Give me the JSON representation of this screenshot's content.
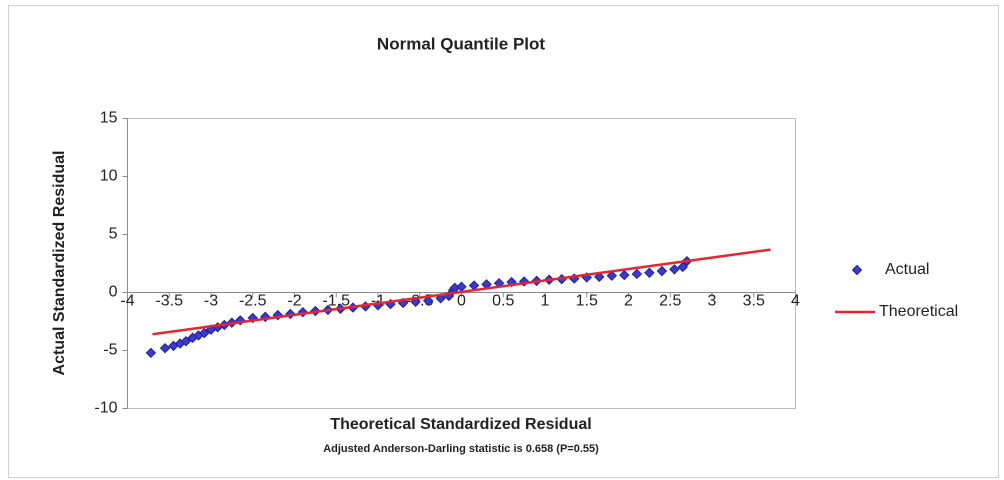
{
  "chart_data": {
    "type": "scatter",
    "title": "Normal Quantile Plot",
    "x_label": "Theoretical Standardized Residual",
    "y_label": "Actual Standardized Residual",
    "annotation": "Adjusted Anderson-Darling statistic is 0.658 (P=0.55)",
    "xlim": [
      -4,
      4
    ],
    "xticks": [
      -4,
      -3.5,
      -3,
      -2.5,
      -2,
      -1.5,
      -1,
      -0.5,
      0,
      0.5,
      1,
      1.5,
      2,
      2.5,
      3,
      3.5,
      4
    ],
    "ylim": [
      -10,
      15
    ],
    "yticks": [
      -10,
      -5,
      0,
      5,
      10,
      15
    ],
    "grid": false,
    "legend": "right",
    "series": [
      {
        "name": "Actual",
        "color": "#3a3ad0",
        "mode": "markers",
        "x": [
          -3.72,
          -3.55,
          -3.45,
          -3.37,
          -3.3,
          -3.22,
          -3.15,
          -3.08,
          -3.0,
          -2.92,
          -2.84,
          -2.75,
          -2.65,
          -2.5,
          -2.35,
          -2.2,
          -2.05,
          -1.9,
          -1.75,
          -1.6,
          -1.45,
          -1.3,
          -1.15,
          -1.0,
          -0.85,
          -0.7,
          -0.55,
          -0.4,
          -0.25,
          -0.15,
          -0.1,
          -0.08,
          0.0,
          0.15,
          0.3,
          0.45,
          0.6,
          0.75,
          0.9,
          1.05,
          1.2,
          1.35,
          1.5,
          1.65,
          1.8,
          1.95,
          2.1,
          2.25,
          2.4,
          2.55,
          2.65,
          2.7
        ],
        "values": [
          -5.2,
          -4.8,
          -4.6,
          -4.4,
          -4.2,
          -3.9,
          -3.7,
          -3.5,
          -3.2,
          -3.0,
          -2.8,
          -2.6,
          -2.4,
          -2.2,
          -2.1,
          -1.95,
          -1.85,
          -1.7,
          -1.6,
          -1.5,
          -1.4,
          -1.3,
          -1.2,
          -1.1,
          -1.0,
          -0.9,
          -0.8,
          -0.7,
          -0.5,
          -0.3,
          0.2,
          0.4,
          0.5,
          0.6,
          0.7,
          0.8,
          0.9,
          0.95,
          1.0,
          1.1,
          1.15,
          1.2,
          1.3,
          1.35,
          1.45,
          1.5,
          1.6,
          1.7,
          1.85,
          2.0,
          2.2,
          2.7
        ]
      },
      {
        "name": "Theoretical",
        "color": "#e8242c",
        "mode": "line",
        "x": [
          -3.7,
          3.7
        ],
        "values": [
          -3.6,
          3.7
        ]
      }
    ]
  }
}
